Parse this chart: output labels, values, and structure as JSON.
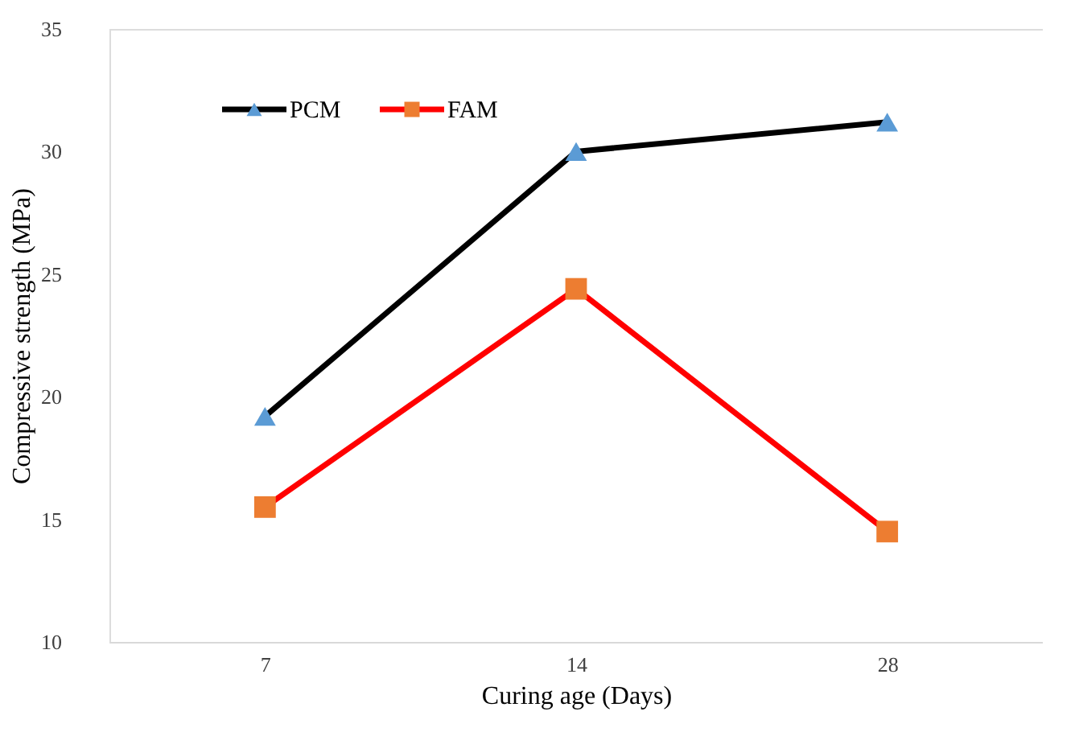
{
  "chart_data": {
    "type": "line",
    "xlabel": "Curing age (Days)",
    "ylabel": "Compressive strength (MPa)",
    "categories": [
      "7",
      "14",
      "28"
    ],
    "series": [
      {
        "name": "PCM",
        "color": "#000000",
        "colors": [
          "#5b9bd5",
          "#5b9bd5",
          "#5b9bd5"
        ],
        "marker": "triangle",
        "values": [
          19.2,
          30.0,
          31.2
        ]
      },
      {
        "name": "FAM",
        "color": "#ff0000",
        "colors": [
          "#ed7d31",
          "#ed7d31",
          "#ed7d31"
        ],
        "marker": "square",
        "values": [
          15.5,
          24.4,
          14.5
        ]
      }
    ],
    "ylim": [
      10,
      35
    ],
    "yticks": [
      10,
      15,
      20,
      25,
      30,
      35
    ],
    "grid": false,
    "legend": "top left",
    "line_style": "solid"
  }
}
